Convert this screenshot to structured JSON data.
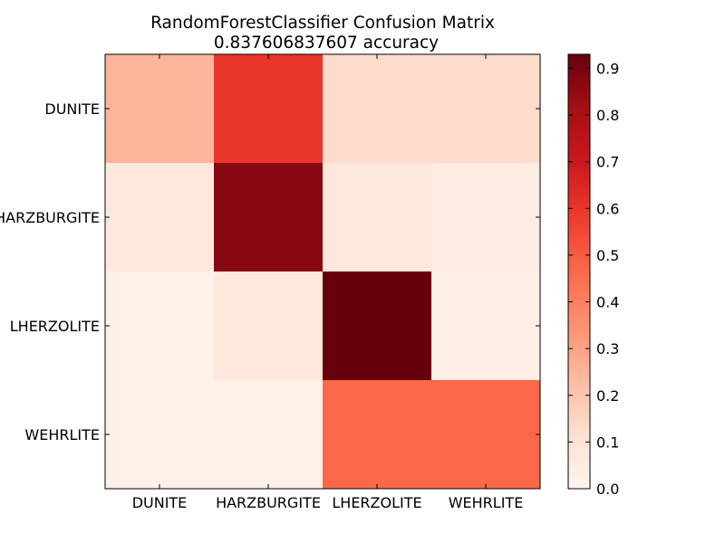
{
  "chart_data": {
    "type": "heatmap",
    "title": "RandomForestClassifier Confusion Matrix",
    "subtitle": "0.837606837607 accuracy",
    "x_categories": [
      "DUNITE",
      "HARZBURGITE",
      "LHERZOLITE",
      "WEHRLITE"
    ],
    "y_categories": [
      "DUNITE",
      "HARZBURGITE",
      "LHERZOLITE",
      "WEHRLITE"
    ],
    "values": [
      [
        0.25,
        0.6,
        0.13,
        0.13
      ],
      [
        0.07,
        0.87,
        0.08,
        0.05
      ],
      [
        0.03,
        0.08,
        0.93,
        0.04
      ],
      [
        0.03,
        0.03,
        0.47,
        0.47
      ]
    ],
    "colormap": "Reds",
    "colorbar": {
      "min": 0.0,
      "max": 0.93,
      "ticks": [
        0.0,
        0.1,
        0.2,
        0.3,
        0.4,
        0.5,
        0.6,
        0.7,
        0.8,
        0.9
      ],
      "tick_labels": [
        "0.0",
        "0.1",
        "0.2",
        "0.3",
        "0.4",
        "0.5",
        "0.6",
        "0.7",
        "0.8",
        "0.9"
      ]
    },
    "grid": false,
    "legend": "colorbar-right"
  }
}
